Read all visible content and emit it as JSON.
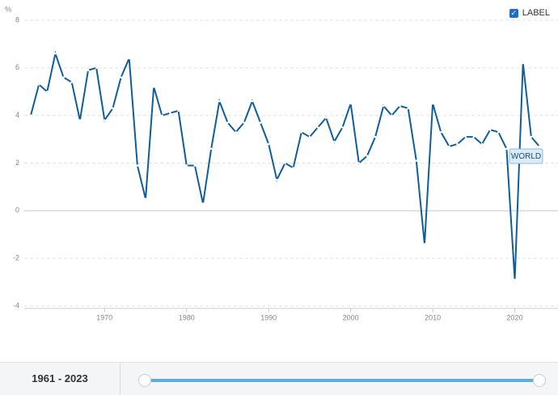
{
  "chart_data": {
    "type": "line",
    "y_unit": "%",
    "legend_label": "LABEL",
    "range_label": "1961 - 2023",
    "x": [
      1961,
      1962,
      1963,
      1964,
      1965,
      1966,
      1967,
      1968,
      1969,
      1970,
      1971,
      1972,
      1973,
      1974,
      1975,
      1976,
      1977,
      1978,
      1979,
      1980,
      1981,
      1982,
      1983,
      1984,
      1985,
      1986,
      1987,
      1988,
      1989,
      1990,
      1991,
      1992,
      1993,
      1994,
      1995,
      1996,
      1997,
      1998,
      1999,
      2000,
      2001,
      2002,
      2003,
      2004,
      2005,
      2006,
      2007,
      2008,
      2009,
      2010,
      2011,
      2012,
      2013,
      2014,
      2015,
      2016,
      2017,
      2018,
      2019,
      2020,
      2021,
      2022,
      2023
    ],
    "series": [
      {
        "name": "WORLD",
        "color": "#0f5e9c",
        "values": [
          4.0,
          5.3,
          5.0,
          6.6,
          5.6,
          5.4,
          3.8,
          5.9,
          6.0,
          3.8,
          4.3,
          5.6,
          6.4,
          1.9,
          0.5,
          5.2,
          4.0,
          4.1,
          4.2,
          1.9,
          1.9,
          0.3,
          2.6,
          4.6,
          3.7,
          3.3,
          3.7,
          4.6,
          3.7,
          2.8,
          1.3,
          2.0,
          1.8,
          3.3,
          3.1,
          3.5,
          3.9,
          2.9,
          3.5,
          4.5,
          2.0,
          2.3,
          3.1,
          4.4,
          4.0,
          4.4,
          4.3,
          2.1,
          -1.4,
          4.5,
          3.3,
          2.7,
          2.8,
          3.1,
          3.1,
          2.8,
          3.4,
          3.3,
          2.6,
          -2.9,
          6.2,
          3.1,
          2.7
        ]
      }
    ],
    "xlim": [
      1961,
      2023
    ],
    "ylim": [
      -4,
      8
    ],
    "xticks": [
      1970,
      1980,
      1990,
      2000,
      2010,
      2020
    ],
    "yticks": [
      8,
      6,
      4,
      2,
      0,
      -2,
      -4
    ],
    "grid": true
  }
}
